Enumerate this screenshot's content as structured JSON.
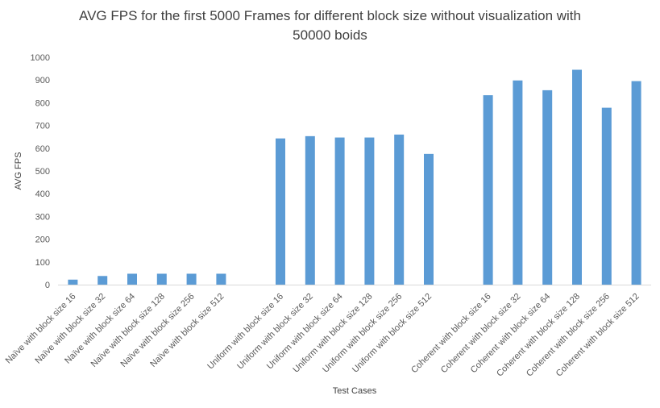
{
  "chart_data": {
    "type": "bar",
    "title_line1": "AVG FPS for the first 5000 Frames for different block size without visualization with",
    "title_line2": "50000 boids",
    "xlabel": "Test Cases",
    "ylabel": "AVG FPS",
    "ylim": [
      0,
      1000
    ],
    "yticks": [
      "0",
      "100",
      "200",
      "300",
      "400",
      "500",
      "600",
      "700",
      "800",
      "900",
      "1000"
    ],
    "grid": false,
    "legend": "none",
    "bar_color": "#5B9BD5",
    "categories": [
      "Naïve with block size 16",
      "Naïve with block size 32",
      "Naïve with block size 64",
      "Naïve with block size 128",
      "Naïve with block size 256",
      "Naïve with block size 512",
      "",
      "Uniform with block size 16",
      "Uniform with block size 32",
      "Uniform with block size 64",
      "Uniform with block size 128",
      "Uniform with block size 256",
      "Uniform with block size 512",
      "",
      "Coherent with block size 16",
      "Coherent with block size 32",
      "Coherent with block size 64",
      "Coherent with block size 128",
      "Coherent with block size 256",
      "Coherent with block size 512"
    ],
    "values": [
      22,
      38,
      48,
      48,
      48,
      48,
      null,
      643,
      653,
      647,
      647,
      660,
      575,
      null,
      833,
      898,
      855,
      945,
      778,
      895
    ]
  }
}
